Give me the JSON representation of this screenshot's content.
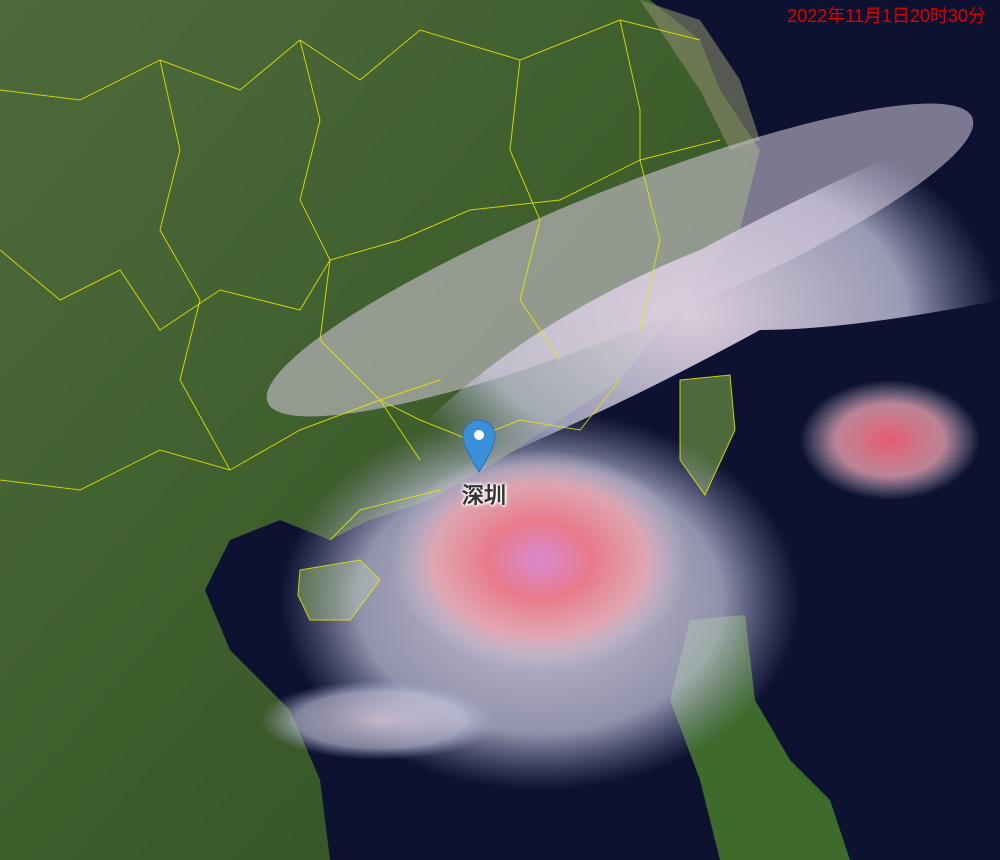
{
  "map": {
    "type": "satellite-cloud-imagery",
    "timestamp": "2022年11月1日20时30分",
    "marker": {
      "label": "深圳",
      "icon": "map-pin-icon",
      "color": "#3b8fd8"
    },
    "colors": {
      "timestamp": "#e00000",
      "borders": "#e8e800",
      "ocean": "#0c1230",
      "land": "#3d5a2a"
    }
  }
}
